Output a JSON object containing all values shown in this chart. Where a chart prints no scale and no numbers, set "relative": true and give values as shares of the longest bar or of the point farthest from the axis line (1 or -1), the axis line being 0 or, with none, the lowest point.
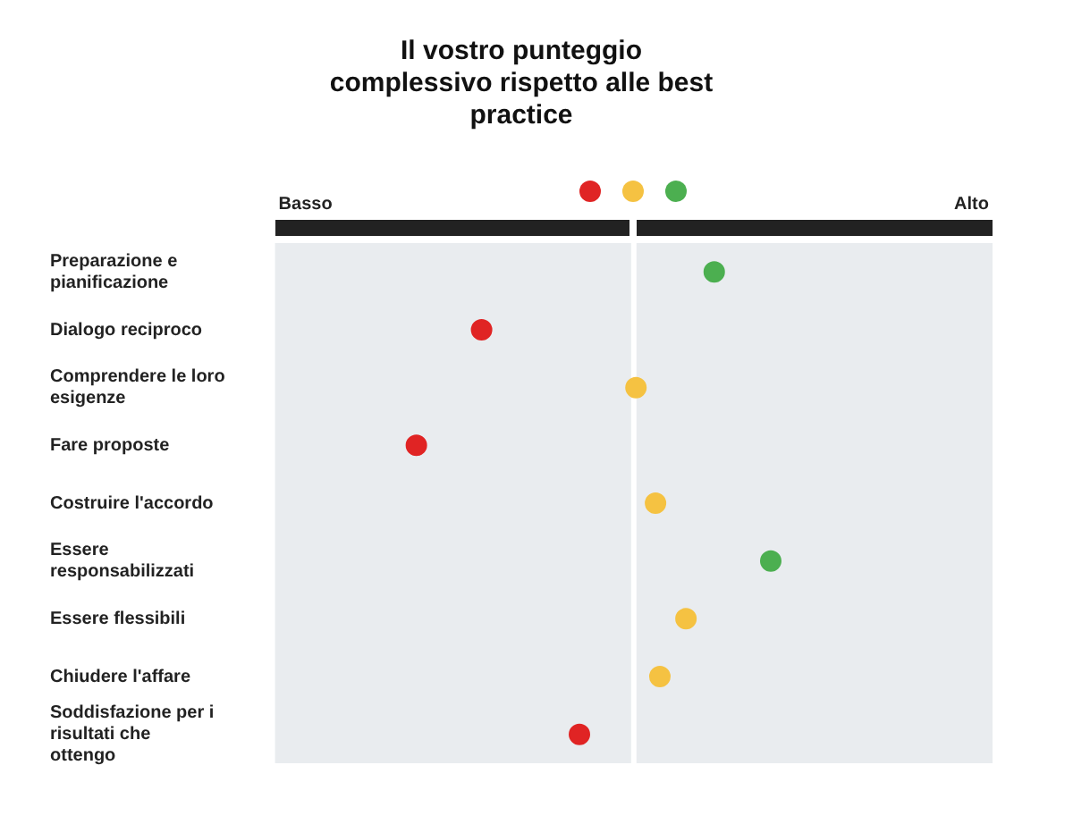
{
  "chart_data": {
    "type": "scatter",
    "title": "Il vostro punteggio complessivo rispetto alle best practice",
    "orientation": "horizontal",
    "relative": true,
    "categories": [
      "Preparazione e pianificazione",
      "Dialogo reciproco",
      "Comprendere le loro esigenze",
      "Fare proposte",
      "Costruire l'accordo",
      "Essere responsabilizzati",
      "Essere flessibili",
      "Chiudere l'affare",
      "Soddisfazione per i risultati che ottengo"
    ],
    "values": [
      0.37,
      -0.7,
      0.01,
      -1,
      0.1,
      0.63,
      0.24,
      0.12,
      -0.25
    ],
    "colors": [
      "#4caf50",
      "#e02424",
      "#f5c242",
      "#e02424",
      "#f5c242",
      "#4caf50",
      "#f5c242",
      "#f5c242",
      "#e02424"
    ],
    "marker": "circle",
    "grid": false,
    "legend": false,
    "ref_lines": [
      {
        "axis": "x",
        "value": 0,
        "color": "#ffffff"
      }
    ],
    "annotations": [
      "Basso",
      "Alto"
    ]
  }
}
